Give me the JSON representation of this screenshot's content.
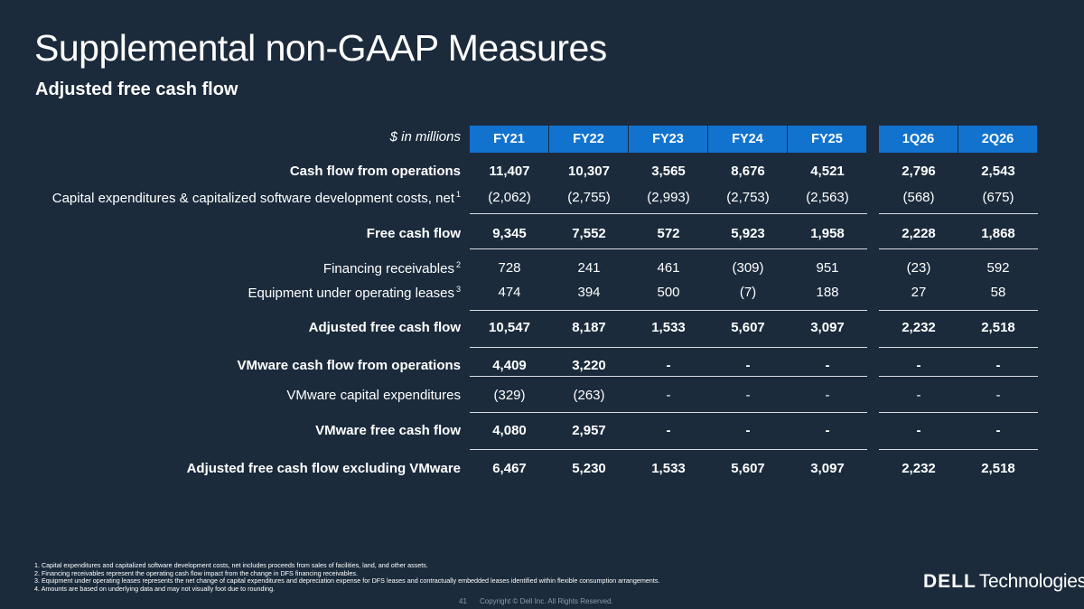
{
  "title": "Supplemental non-GAAP Measures",
  "subtitle": "Adjusted free cash flow",
  "table": {
    "unit_label": "$ in millions",
    "columns": [
      "FY21",
      "FY22",
      "FY23",
      "FY24",
      "FY25",
      "1Q26",
      "2Q26"
    ],
    "rows": [
      {
        "label": "Cash flow from operations",
        "sup": "",
        "bold": true,
        "values": [
          "11,407",
          "10,307",
          "3,565",
          "8,676",
          "4,521",
          "2,796",
          "2,543"
        ]
      },
      {
        "label": "Capital expenditures & capitalized software development costs, net",
        "sup": "1",
        "bold": false,
        "values": [
          "(2,062)",
          "(2,755)",
          "(2,993)",
          "(2,753)",
          "(2,563)",
          "(568)",
          "(675)"
        ]
      },
      {
        "label": "Free cash flow",
        "sup": "",
        "bold": true,
        "values": [
          "9,345",
          "7,552",
          "572",
          "5,923",
          "1,958",
          "2,228",
          "1,868"
        ]
      },
      {
        "label": "Financing receivables",
        "sup": "2",
        "bold": false,
        "values": [
          "728",
          "241",
          "461",
          "(309)",
          "951",
          "(23)",
          "592"
        ]
      },
      {
        "label": "Equipment under operating leases",
        "sup": "3",
        "bold": false,
        "values": [
          "474",
          "394",
          "500",
          "(7)",
          "188",
          "27",
          "58"
        ]
      },
      {
        "label": "Adjusted free cash flow",
        "sup": "",
        "bold": true,
        "values": [
          "10,547",
          "8,187",
          "1,533",
          "5,607",
          "3,097",
          "2,232",
          "2,518"
        ]
      },
      {
        "label": "VMware cash flow from operations",
        "sup": "",
        "bold": true,
        "values": [
          "4,409",
          "3,220",
          "-",
          "-",
          "-",
          "-",
          "-"
        ]
      },
      {
        "label": "VMware capital expenditures",
        "sup": "",
        "bold": false,
        "values": [
          "(329)",
          "(263)",
          "-",
          "-",
          "-",
          "-",
          "-"
        ]
      },
      {
        "label": "VMware free cash flow",
        "sup": "",
        "bold": true,
        "values": [
          "4,080",
          "2,957",
          "-",
          "-",
          "-",
          "-",
          "-"
        ]
      },
      {
        "label": "Adjusted free cash flow excluding VMware",
        "sup": "",
        "bold": true,
        "values": [
          "6,467",
          "5,230",
          "1,533",
          "5,607",
          "3,097",
          "2,232",
          "2,518"
        ]
      }
    ]
  },
  "footnotes": [
    "1. Capital expenditures and capitalized software development costs, net includes proceeds from sales of facilities, land, and other assets.",
    "2. Financing receivables represent the operating cash flow impact from the change in DFS financing receivables.",
    "3. Equipment under operating leases represents the net change of capital expenditures and depreciation expense for DFS leases and contractually embedded leases identified within flexible consumption arrangements.",
    "4. Amounts are based on underlying data and may not visually foot due to rounding."
  ],
  "footer": {
    "page_number": "41",
    "copyright": "Copyright © Dell Inc. All Rights Reserved."
  },
  "logo": {
    "brand": "DELL",
    "suffix": "Technologies"
  },
  "colors": {
    "background": "#1b2b3c",
    "header_band": "#1273cf",
    "rule": "#d9dde3"
  }
}
